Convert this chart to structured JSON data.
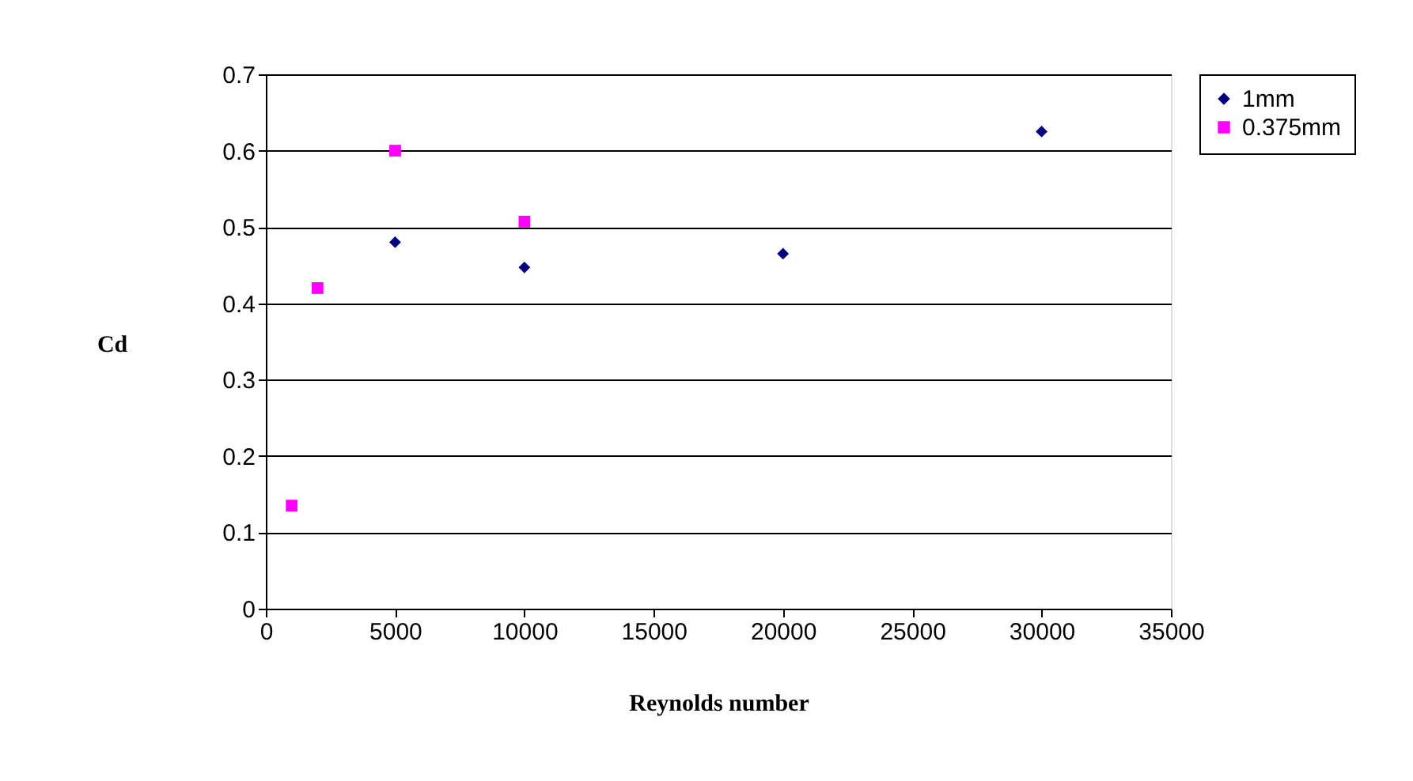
{
  "chart_data": {
    "type": "scatter",
    "xlabel": "Reynolds number",
    "ylabel": "Cd",
    "series": [
      {
        "name": "1mm",
        "color": "#000080",
        "marker": "diamond",
        "x": [
          5000,
          10000,
          20000,
          30000
        ],
        "values": [
          0.48,
          0.447,
          0.465,
          0.625
        ]
      },
      {
        "name": "0.375mm",
        "color": "#ff00ff",
        "marker": "square",
        "x": [
          1000,
          2000,
          5000,
          10000
        ],
        "values": [
          0.135,
          0.42,
          0.6,
          0.507
        ]
      }
    ],
    "xlim": [
      0,
      35000
    ],
    "xticks": [
      0,
      5000,
      10000,
      15000,
      20000,
      25000,
      30000,
      35000
    ],
    "ylim": [
      0,
      0.7
    ],
    "yticks": [
      0,
      0.1,
      0.2,
      0.3,
      0.4,
      0.5,
      0.6,
      0.7
    ],
    "grid": "y",
    "legend": "right"
  }
}
